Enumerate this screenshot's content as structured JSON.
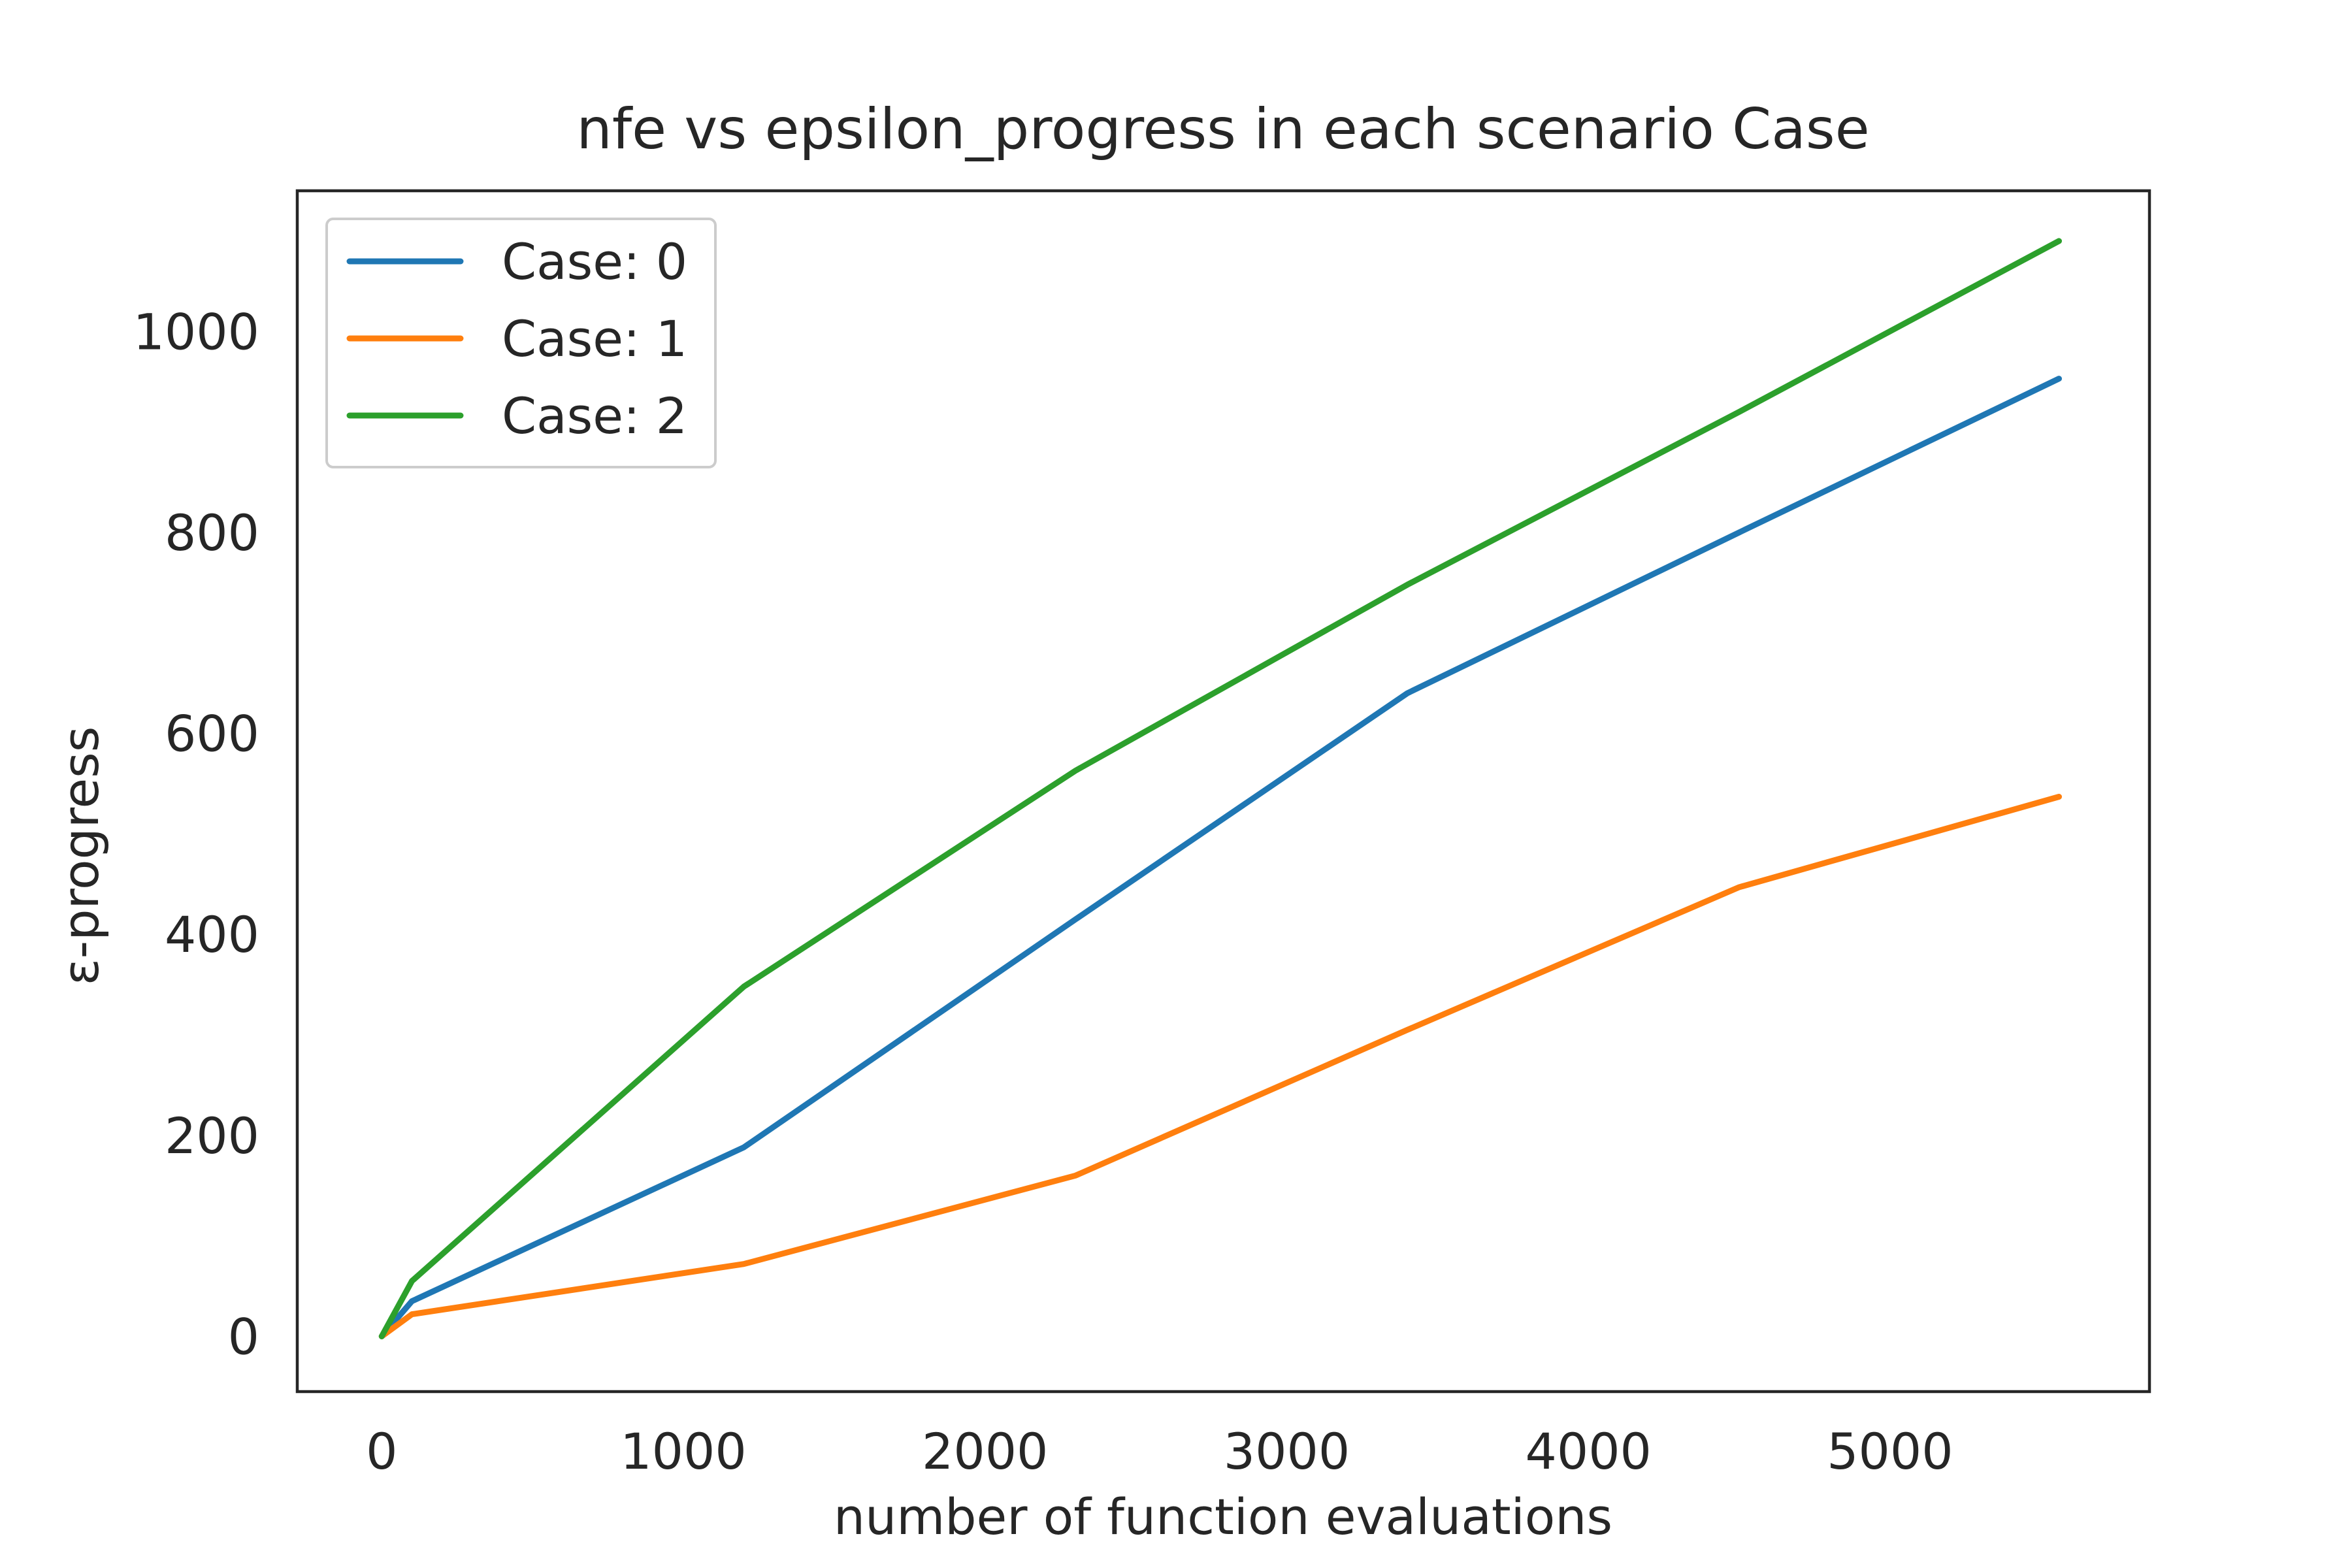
{
  "chart_data": {
    "type": "line",
    "title": "nfe vs epsilon_progress in each scenario Case",
    "xlabel": "number of function evaluations",
    "ylabel": "ε-progress",
    "xlim": [
      -280,
      5860
    ],
    "ylim": [
      -55,
      1140
    ],
    "xticks": [
      0,
      1000,
      2000,
      3000,
      4000,
      5000
    ],
    "yticks": [
      0,
      200,
      400,
      600,
      800,
      1000
    ],
    "xtick_labels": [
      "0",
      "1000",
      "2000",
      "3000",
      "4000",
      "5000"
    ],
    "ytick_labels": [
      "0",
      "200",
      "400",
      "600",
      "800",
      "1000"
    ],
    "grid": false,
    "legend_position": "top-left",
    "series": [
      {
        "name": "Case: 0",
        "color": "#1f77b4",
        "x": [
          0,
          100,
          1200,
          2300,
          3400,
          4500,
          5560
        ],
        "y": [
          0,
          35,
          188,
          415,
          640,
          800,
          953
        ]
      },
      {
        "name": "Case: 1",
        "color": "#ff7f0e",
        "x": [
          0,
          100,
          1200,
          2300,
          3400,
          4500,
          5560
        ],
        "y": [
          0,
          22,
          72,
          160,
          305,
          447,
          537
        ]
      },
      {
        "name": "Case: 2",
        "color": "#2ca02c",
        "x": [
          0,
          100,
          1200,
          2300,
          3400,
          4500,
          5560
        ],
        "y": [
          0,
          55,
          348,
          563,
          748,
          920,
          1090
        ]
      }
    ]
  }
}
